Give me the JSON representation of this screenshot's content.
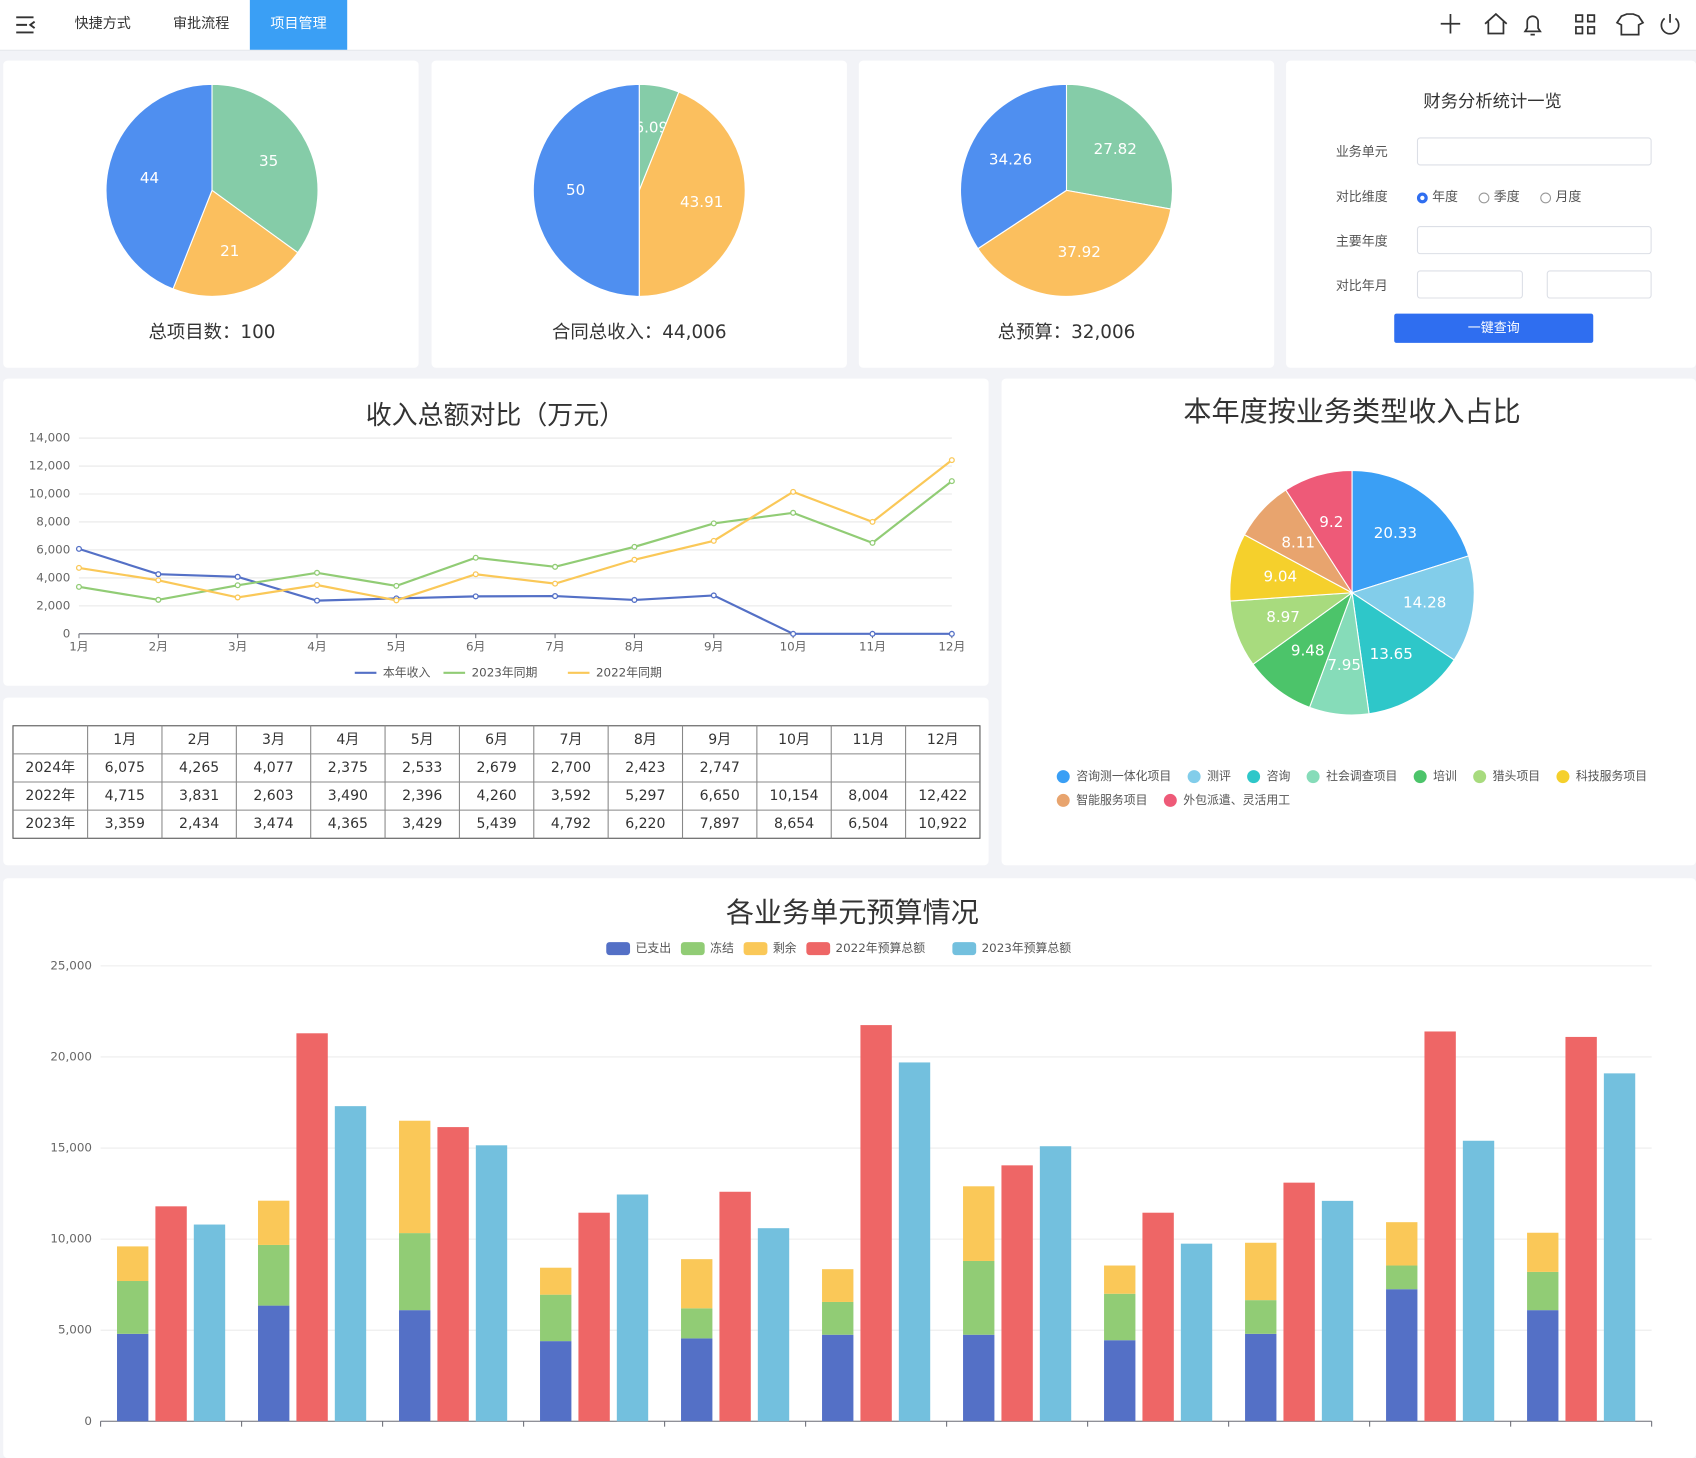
{
  "nav": {
    "items": [
      "快捷方式",
      "审批流程",
      "项目管理"
    ],
    "active": 2
  },
  "form": {
    "title": "财务分析统计一览",
    "labels": [
      "业务单元",
      "对比维度",
      "主要年度",
      "对比年月"
    ],
    "radios": [
      "年度",
      "季度",
      "月度"
    ],
    "checked": 0,
    "button": "一键查询"
  },
  "table": {
    "header": [
      "1月",
      "2月",
      "3月",
      "4月",
      "5月",
      "6月",
      "7月",
      "8月",
      "9月",
      "10月",
      "11月",
      "12月"
    ],
    "rows": [
      {
        "label": "2024年",
        "cells": [
          "6,075",
          "4,265",
          "4,077",
          "2,375",
          "2,533",
          "2,679",
          "2,700",
          "2,423",
          "2,747",
          null,
          null,
          null
        ]
      },
      {
        "label": "2022年",
        "cells": [
          "4,715",
          "3,831",
          "2,603",
          "3,490",
          "2,396",
          "4,260",
          "3,592",
          "5,297",
          "6,650",
          "10,154",
          "8,004",
          "12,422"
        ]
      },
      {
        "label": "2023年",
        "cells": [
          "3,359",
          "2,434",
          "3,474",
          "4,365",
          "3,429",
          "5,439",
          "4,792",
          "6,220",
          "7,897",
          "8,654",
          "6,504",
          "10,922"
        ]
      }
    ]
  },
  "chart_data": [
    {
      "type": "pie",
      "title": "总项目数：100",
      "values": [
        35,
        21,
        44
      ],
      "colors": [
        "#85cca8",
        "#fbbf5e",
        "#4f8ff0"
      ]
    },
    {
      "type": "pie",
      "title": "合同总收入：44,006",
      "values": [
        6.09,
        43.91,
        50
      ],
      "colors": [
        "#85cca8",
        "#fbbf5e",
        "#4f8ff0"
      ]
    },
    {
      "type": "pie",
      "title": "总预算：32,006",
      "values": [
        27.82,
        37.92,
        34.26
      ],
      "colors": [
        "#85cca8",
        "#fbbf5e",
        "#4f8ff0"
      ]
    },
    {
      "type": "line",
      "title": "收入总额对比（万元）",
      "categories": [
        "1月",
        "2月",
        "3月",
        "4月",
        "5月",
        "6月",
        "7月",
        "8月",
        "9月",
        "10月",
        "11月",
        "12月"
      ],
      "series": [
        {
          "name": "本年收入",
          "color": "#5470c6",
          "values": [
            6075,
            4265,
            4077,
            2375,
            2533,
            2679,
            2700,
            2423,
            2747,
            0,
            0,
            0
          ]
        },
        {
          "name": "2023年同期",
          "color": "#91cc75",
          "values": [
            3359,
            2434,
            3474,
            4365,
            3429,
            5439,
            4792,
            6220,
            7897,
            8654,
            6504,
            10922
          ]
        },
        {
          "name": "2022年同期",
          "color": "#fac858",
          "values": [
            4715,
            3831,
            2603,
            3490,
            2396,
            4260,
            3592,
            5297,
            6650,
            10154,
            8004,
            12422
          ]
        }
      ],
      "ylim": [
        0,
        14000
      ],
      "yticks": [
        0,
        {
          "value": 2000,
          "label": "2,000"
        },
        {
          "value": 4000,
          "label": "4,000"
        },
        {
          "value": 6000,
          "label": "6,000"
        },
        {
          "value": 8000,
          "label": "8,000"
        },
        {
          "value": 10000,
          "label": "10,000"
        },
        {
          "value": 12000,
          "label": "12,000"
        },
        {
          "value": 14000,
          "label": "14,000"
        }
      ],
      "grid": true
    },
    {
      "type": "pie",
      "title": "本年度按业务类型收入占比",
      "categories": [
        "咨询测一体化项目",
        "测评",
        "咨询",
        "社会调查项目",
        "培训",
        "猎头项目",
        "科技服务项目",
        "智能服务项目",
        "外包派遣、灵活用工"
      ],
      "values": [
        20.33,
        14.28,
        13.65,
        7.95,
        9.48,
        8.97,
        9.04,
        8.11,
        9.2
      ],
      "colors": [
        "#3a9ff5",
        "#82cdea",
        "#2ec7c9",
        "#86dcb9",
        "#4cc46a",
        "#a8db7e",
        "#f5d02c",
        "#e8a46e",
        "#ee5a78"
      ]
    },
    {
      "type": "bar",
      "title": "各业务单元预算情况",
      "categories": [
        null,
        null,
        null,
        null,
        null,
        null,
        null,
        null,
        null,
        null,
        null
      ],
      "series": [
        {
          "name": "已支出",
          "color": "#5470c6",
          "stacked": true,
          "values": [
            4800,
            6350,
            6100,
            4400,
            4550,
            4750,
            4750,
            4450,
            4800,
            7250,
            6100
          ]
        },
        {
          "name": "冻结",
          "color": "#91cc75",
          "stacked": true,
          "values": [
            2900,
            3330,
            4230,
            2550,
            1650,
            1800,
            4050,
            2550,
            1850,
            1300,
            2100
          ]
        },
        {
          "name": "剩余",
          "color": "#fac858",
          "stacked": true,
          "values": [
            1900,
            2430,
            6170,
            1480,
            2700,
            1800,
            4100,
            1550,
            3150,
            2380,
            2150
          ]
        },
        {
          "name": "2022年预算总额",
          "color": "#ee6666",
          "values": [
            11800,
            21300,
            16150,
            11450,
            12600,
            21750,
            14050,
            11450,
            13100,
            21400,
            21100
          ]
        },
        {
          "name": "2023年预算总额",
          "color": "#73c0de",
          "values": [
            10800,
            17300,
            15150,
            12450,
            10600,
            19700,
            15100,
            9750,
            12100,
            15400,
            19100
          ]
        }
      ],
      "ylim": [
        0,
        25000
      ],
      "yticks": [
        0,
        {
          "value": 5000,
          "label": "5,000"
        },
        {
          "value": 10000,
          "label": "10,000"
        },
        {
          "value": 15000,
          "label": "15,000"
        },
        {
          "value": 20000,
          "label": "20,000"
        },
        {
          "value": 25000,
          "label": "25,000"
        }
      ],
      "grid": true
    }
  ]
}
